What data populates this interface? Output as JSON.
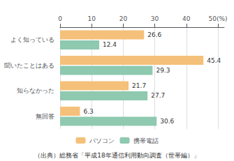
{
  "chart_data": {
    "type": "bar",
    "orientation": "horizontal",
    "categories": [
      "よく知っている",
      "聞いたことはある",
      "知らなかった",
      "無回答"
    ],
    "series": [
      {
        "name": "パソコン",
        "color": "#F5C07A",
        "values": [
          26.6,
          45.4,
          21.7,
          6.3
        ]
      },
      {
        "name": "携帯電話",
        "color": "#8EC9B0",
        "values": [
          12.4,
          29.3,
          27.7,
          30.6
        ]
      }
    ],
    "xlim": [
      0,
      52
    ],
    "xticks": [
      0,
      10,
      20,
      30,
      40,
      {
        "value": 50,
        "label": "50(%)"
      }
    ],
    "grid": true,
    "data_labels": true,
    "legend": "bottom",
    "annotations": [
      "（出典）総務省「平成18年通信利用動向調査（世帯編）」"
    ]
  }
}
